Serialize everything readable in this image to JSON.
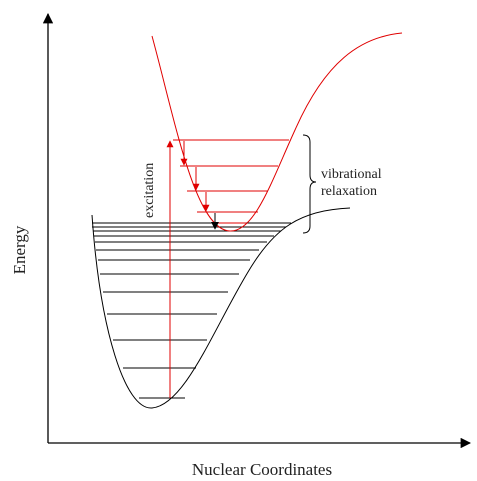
{
  "labels": {
    "y_axis": "Energy",
    "x_axis": "Nuclear Coordinates",
    "excitation": "excitation",
    "relaxation_line1": "vibrational",
    "relaxation_line2": "relaxation"
  },
  "colors": {
    "ground_state": "#000000",
    "excited_state": "#e00000",
    "axis": "#000000"
  }
}
